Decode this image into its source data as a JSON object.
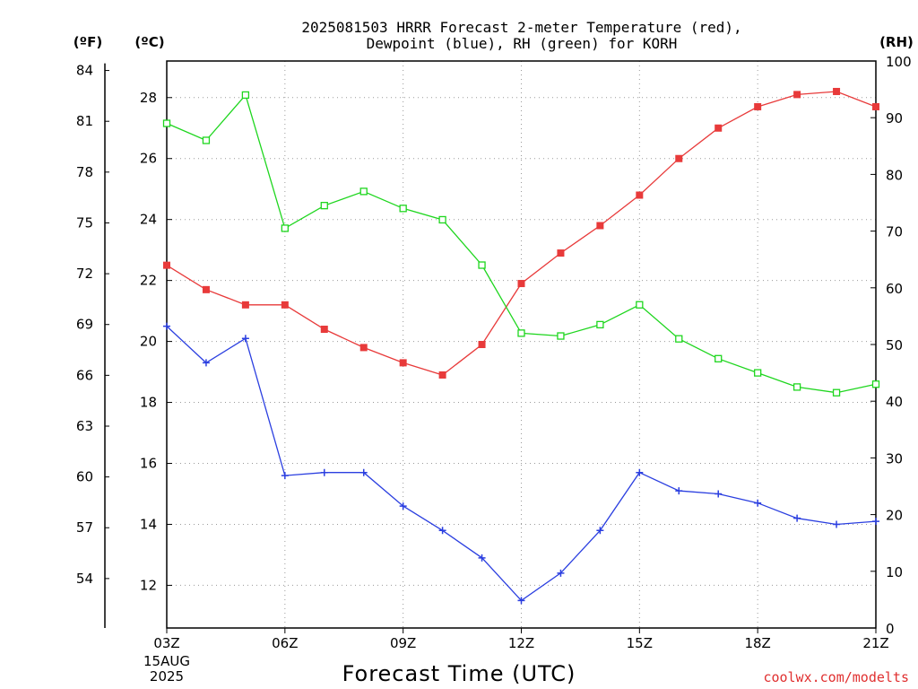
{
  "title": {
    "line1": "2025081503 HRRR Forecast 2-meter Temperature (red),",
    "line2": "Dewpoint (blue), RH (green) for KORH"
  },
  "units": {
    "fahrenheit": "(ºF)",
    "celsius": "(ºC)",
    "rh": "(RH)"
  },
  "xlabel": "Forecast Time (UTC)",
  "credit": "coolwx.com/modelts",
  "x_date": {
    "line1": "15AUG",
    "line2": "2025"
  },
  "colors": {
    "temperature": "#e83a3a",
    "dewpoint": "#2b3fe0",
    "rh": "#1ed61e",
    "credit": "#e03030"
  },
  "chart_data": {
    "type": "line",
    "title": "2025081503 HRRR Forecast 2-meter Temperature (red), Dewpoint (blue), RH (green) for KORH",
    "xlabel": "Forecast Time (UTC)",
    "x": [
      "03Z",
      "04Z",
      "05Z",
      "06Z",
      "07Z",
      "08Z",
      "09Z",
      "10Z",
      "11Z",
      "12Z",
      "13Z",
      "14Z",
      "15Z",
      "16Z",
      "17Z",
      "18Z",
      "19Z",
      "20Z",
      "21Z"
    ],
    "xticks": [
      "03Z",
      "06Z",
      "09Z",
      "12Z",
      "15Z",
      "18Z",
      "21Z"
    ],
    "celsius_axis": {
      "ylim": [
        10.6,
        29.2
      ],
      "ticks": [
        12,
        14,
        16,
        18,
        20,
        22,
        24,
        26,
        28
      ]
    },
    "fahrenheit_axis": {
      "ticks": [
        54,
        57,
        60,
        63,
        66,
        69,
        72,
        75,
        78,
        81,
        84
      ]
    },
    "rh_axis": {
      "ylim": [
        0,
        100
      ],
      "ticks": [
        0,
        10,
        20,
        30,
        40,
        50,
        60,
        70,
        80,
        90,
        100
      ]
    },
    "grid": true,
    "series": [
      {
        "name": "Temperature",
        "axis": "celsius",
        "color": "#e83a3a",
        "marker": "filled-square",
        "values": [
          22.5,
          21.7,
          21.2,
          21.2,
          20.4,
          19.8,
          19.3,
          18.9,
          19.9,
          21.9,
          22.9,
          23.8,
          24.8,
          26.0,
          27.0,
          27.7,
          28.1,
          28.2,
          27.7
        ]
      },
      {
        "name": "Dewpoint",
        "axis": "celsius",
        "color": "#2b3fe0",
        "marker": "plus",
        "values": [
          20.5,
          19.3,
          20.1,
          15.6,
          15.7,
          15.7,
          14.6,
          13.8,
          12.9,
          11.5,
          12.4,
          13.8,
          15.7,
          15.1,
          15.0,
          14.7,
          14.2,
          14.0,
          14.1
        ]
      },
      {
        "name": "RH",
        "axis": "rh",
        "color": "#1ed61e",
        "marker": "open-square",
        "values": [
          89,
          86,
          94,
          70.5,
          74.5,
          77,
          74,
          72,
          64,
          52,
          51.5,
          53.5,
          57,
          51,
          47.5,
          45,
          42.5,
          41.5,
          43
        ]
      }
    ]
  }
}
